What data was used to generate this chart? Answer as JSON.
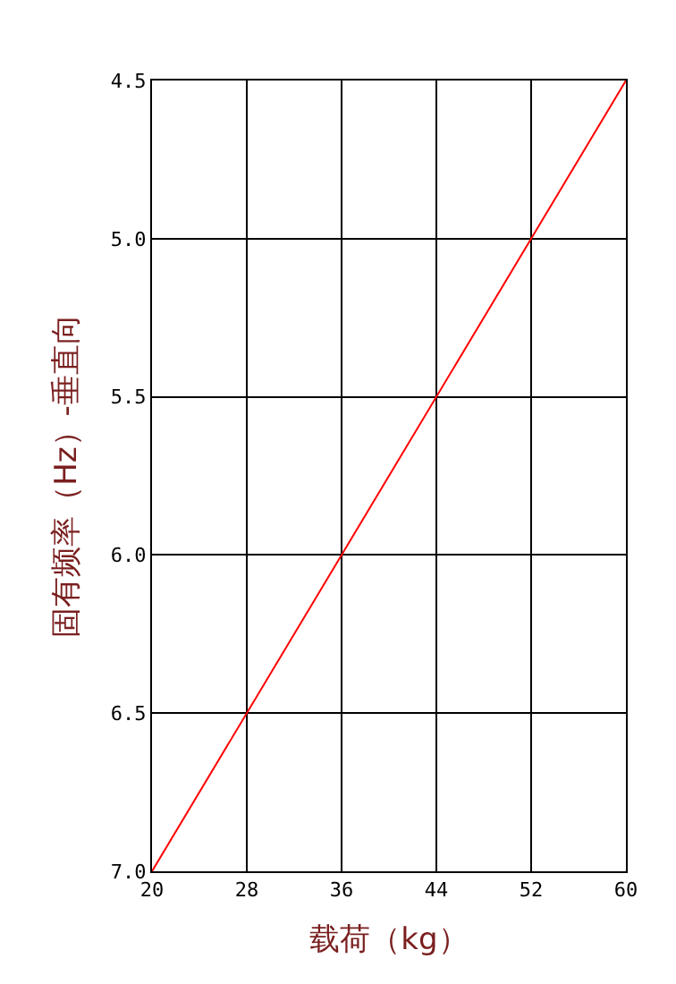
{
  "chart_data": {
    "type": "line",
    "xlabel": "载荷（kg）",
    "ylabel": "固有频率（Hz）-垂直向",
    "x": [
      20,
      60
    ],
    "series": [
      {
        "color": "#ff0000",
        "values": [
          7.0,
          4.5
        ]
      }
    ],
    "xlim": [
      20,
      60
    ],
    "xticks": [
      20,
      28,
      36,
      44,
      52,
      60
    ],
    "ylim": [
      7.0,
      4.5
    ],
    "yticks": [
      {
        "value": 4.5,
        "label": "4.5"
      },
      {
        "value": 5.0,
        "label": "5.0"
      },
      {
        "value": 5.5,
        "label": "5.5"
      },
      {
        "value": 6.0,
        "label": "6.0"
      },
      {
        "value": 6.5,
        "label": "6.5"
      },
      {
        "value": 7.0,
        "label": "7.0"
      }
    ],
    "grid": true,
    "marker": "none",
    "line_style": "solid"
  }
}
